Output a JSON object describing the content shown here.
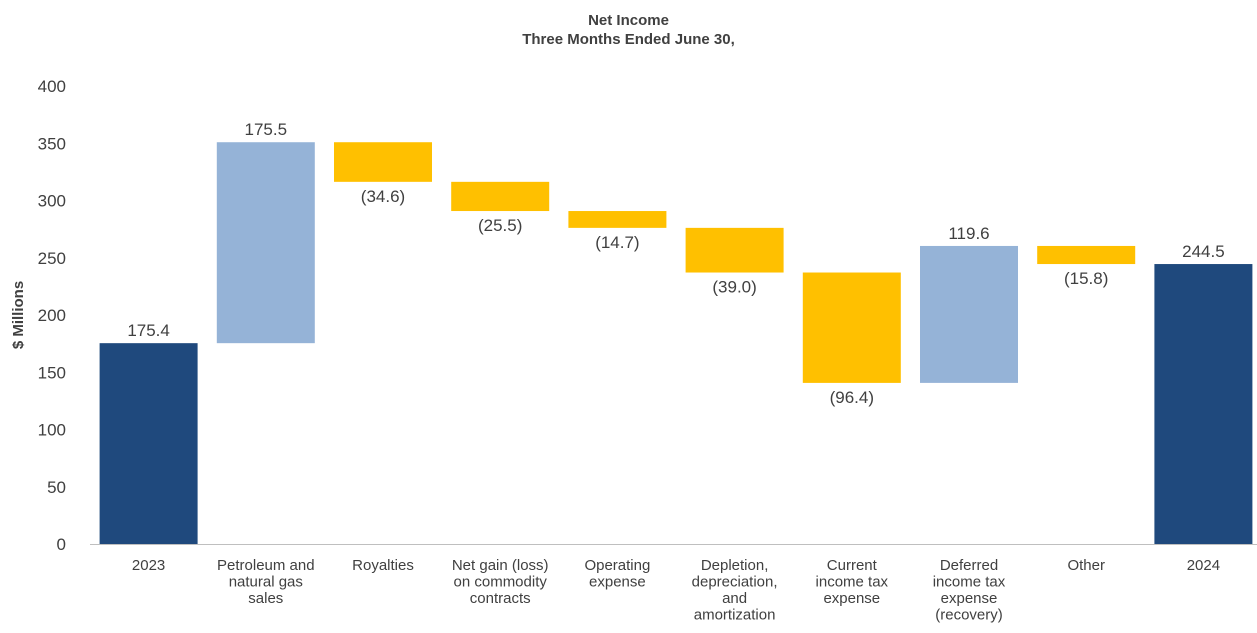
{
  "chart_data": {
    "type": "waterfall",
    "title": "Net Income",
    "subtitle": "Three Months Ended June 30,",
    "ylabel": "$ Millions",
    "ylim": [
      0,
      400
    ],
    "yticks": [
      "0",
      "50",
      "100",
      "150",
      "200",
      "250",
      "300",
      "350",
      "400"
    ],
    "grid": false,
    "legend": "none",
    "colors": {
      "total": "#1f497d",
      "increase": "#95b3d7",
      "decrease": "#ffc000"
    },
    "bars": [
      {
        "label": [
          "2023"
        ],
        "kind": "total",
        "start": 0,
        "end": 175.4,
        "value_label": "175.4"
      },
      {
        "label": [
          "Petroleum and",
          "natural gas",
          "sales"
        ],
        "kind": "increase",
        "start": 175.4,
        "end": 350.9,
        "value_label": "175.5"
      },
      {
        "label": [
          "Royalties"
        ],
        "kind": "decrease",
        "start": 350.9,
        "end": 316.3,
        "value_label": "(34.6)"
      },
      {
        "label": [
          "Net gain (loss)",
          "on commodity",
          "contracts"
        ],
        "kind": "decrease",
        "start": 316.3,
        "end": 290.8,
        "value_label": "(25.5)"
      },
      {
        "label": [
          "Operating",
          "expense"
        ],
        "kind": "decrease",
        "start": 290.8,
        "end": 276.1,
        "value_label": "(14.7)"
      },
      {
        "label": [
          "Depletion,",
          "depreciation,",
          "and",
          "amortization"
        ],
        "kind": "decrease",
        "start": 276.1,
        "end": 237.1,
        "value_label": "(39.0)"
      },
      {
        "label": [
          "Current",
          "income tax",
          "expense"
        ],
        "kind": "decrease",
        "start": 237.1,
        "end": 140.7,
        "value_label": "(96.4)"
      },
      {
        "label": [
          "Deferred",
          "income tax",
          "expense",
          "(recovery)"
        ],
        "kind": "increase",
        "start": 140.7,
        "end": 260.3,
        "value_label": "119.6"
      },
      {
        "label": [
          "Other"
        ],
        "kind": "decrease",
        "start": 260.3,
        "end": 244.5,
        "value_label": "(15.8)"
      },
      {
        "label": [
          "2024"
        ],
        "kind": "total",
        "start": 0,
        "end": 244.5,
        "value_label": "244.5"
      }
    ]
  }
}
